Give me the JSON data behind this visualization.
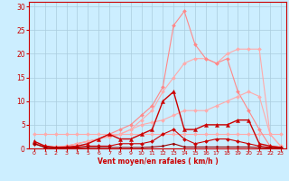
{
  "background_color": "#cceeff",
  "grid_color": "#aaccdd",
  "xlabel": "Vent moyen/en rafales ( km/h )",
  "xlabel_color": "#cc0000",
  "tick_color": "#cc0000",
  "xlim": [
    -0.5,
    23.5
  ],
  "ylim": [
    0,
    31
  ],
  "xticks": [
    0,
    1,
    2,
    3,
    4,
    5,
    6,
    7,
    8,
    9,
    10,
    11,
    12,
    13,
    14,
    15,
    16,
    17,
    18,
    19,
    20,
    21,
    22,
    23
  ],
  "yticks": [
    0,
    5,
    10,
    15,
    20,
    25,
    30
  ],
  "series": [
    {
      "x": [
        0,
        1,
        2,
        3,
        4,
        5,
        6,
        7,
        8,
        9,
        10,
        11,
        12,
        13,
        14,
        15,
        16,
        17,
        18,
        19,
        20,
        21,
        22,
        23
      ],
      "y": [
        3,
        3,
        3,
        3,
        3,
        3,
        3,
        3,
        3,
        3,
        3,
        3,
        3,
        3,
        3,
        3,
        3,
        3,
        3,
        3,
        3,
        3,
        3,
        3
      ],
      "color": "#ffaaaa",
      "linewidth": 0.8,
      "marker": "D",
      "markersize": 2.0
    },
    {
      "x": [
        0,
        1,
        2,
        3,
        4,
        5,
        6,
        7,
        8,
        9,
        10,
        11,
        12,
        13,
        14,
        15,
        16,
        17,
        18,
        19,
        20,
        21,
        22,
        23
      ],
      "y": [
        1,
        0.5,
        0.3,
        0.5,
        1,
        1.5,
        2,
        2.5,
        3,
        4,
        6,
        8,
        12,
        15,
        18,
        19,
        19,
        18,
        20,
        21,
        21,
        21,
        3,
        0.5
      ],
      "color": "#ffaaaa",
      "linewidth": 0.8,
      "marker": "D",
      "markersize": 2.0
    },
    {
      "x": [
        0,
        1,
        2,
        3,
        4,
        5,
        6,
        7,
        8,
        9,
        10,
        11,
        12,
        13,
        14,
        15,
        16,
        17,
        18,
        19,
        20,
        21,
        22,
        23
      ],
      "y": [
        1,
        0.5,
        0.3,
        0.5,
        1,
        1.5,
        2,
        3,
        4,
        5,
        7,
        9,
        13,
        26,
        29,
        22,
        19,
        18,
        19,
        12,
        8,
        4,
        0.5,
        0.3
      ],
      "color": "#ff8888",
      "linewidth": 0.8,
      "marker": "D",
      "markersize": 2.0
    },
    {
      "x": [
        0,
        1,
        2,
        3,
        4,
        5,
        6,
        7,
        8,
        9,
        10,
        11,
        12,
        13,
        14,
        15,
        16,
        17,
        18,
        19,
        20,
        21,
        22,
        23
      ],
      "y": [
        1,
        0.5,
        0.3,
        0.5,
        1,
        1.5,
        2,
        2.5,
        3,
        4,
        5,
        5.5,
        6,
        7,
        8,
        8,
        8,
        9,
        10,
        11,
        12,
        11,
        3,
        0.5
      ],
      "color": "#ffaaaa",
      "linewidth": 0.8,
      "marker": "D",
      "markersize": 2.0
    },
    {
      "x": [
        0,
        1,
        2,
        3,
        4,
        5,
        6,
        7,
        8,
        9,
        10,
        11,
        12,
        13,
        14,
        15,
        16,
        17,
        18,
        19,
        20,
        21,
        22,
        23
      ],
      "y": [
        1.5,
        0.5,
        0.2,
        0.3,
        0.5,
        1,
        2,
        3,
        2,
        2,
        3,
        4,
        10,
        12,
        4,
        4,
        5,
        5,
        5,
        6,
        6,
        1,
        0.5,
        0.2
      ],
      "color": "#cc0000",
      "linewidth": 1.0,
      "marker": "^",
      "markersize": 3.0
    },
    {
      "x": [
        0,
        1,
        2,
        3,
        4,
        5,
        6,
        7,
        8,
        9,
        10,
        11,
        12,
        13,
        14,
        15,
        16,
        17,
        18,
        19,
        20,
        21,
        22,
        23
      ],
      "y": [
        1,
        0.3,
        0.2,
        0.2,
        0.3,
        0.5,
        0.5,
        0.5,
        1,
        1,
        1,
        1.5,
        3,
        4,
        2,
        1,
        1.5,
        2,
        2,
        1.5,
        1,
        0.5,
        0.2,
        0.2
      ],
      "color": "#cc0000",
      "linewidth": 0.8,
      "marker": "D",
      "markersize": 2.0
    },
    {
      "x": [
        0,
        1,
        2,
        3,
        4,
        5,
        6,
        7,
        8,
        9,
        10,
        11,
        12,
        13,
        14,
        15,
        16,
        17,
        18,
        19,
        20,
        21,
        22,
        23
      ],
      "y": [
        1,
        0.2,
        0.1,
        0.1,
        0.1,
        0.2,
        0.2,
        0.2,
        0.2,
        0.2,
        0.2,
        0.3,
        0.5,
        1,
        0.3,
        0.3,
        0.3,
        0.3,
        0.3,
        0.3,
        0.3,
        0.2,
        0.1,
        0.1
      ],
      "color": "#990000",
      "linewidth": 0.8,
      "marker": "D",
      "markersize": 1.5
    }
  ]
}
